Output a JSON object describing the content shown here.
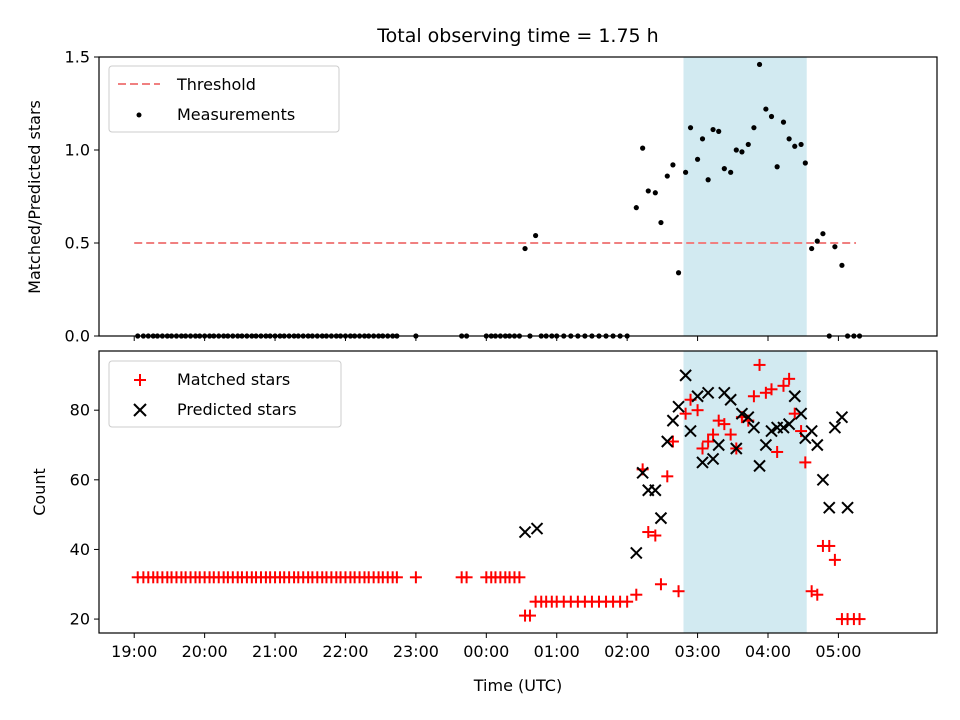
{
  "chart_data": {
    "title": "Total observing time = 1.75 h",
    "type": "scatter",
    "xlabel": "Time (UTC)",
    "x_tick_labels": [
      "19:00",
      "20:00",
      "21:00",
      "22:00",
      "23:00",
      "00:00",
      "01:00",
      "02:00",
      "03:00",
      "04:00",
      "05:00"
    ],
    "x_tick_hours": [
      0,
      1,
      2,
      3,
      4,
      5,
      6,
      7,
      8,
      9,
      10
    ],
    "x_unit": "hours after 19:00 UTC",
    "xlim": [
      -0.5,
      11.4
    ],
    "highlight_span": {
      "x_from": 7.8,
      "x_to": 9.55,
      "color": "#add8e6"
    },
    "panels": [
      {
        "ylabel": "Matched/Predicted stars",
        "ylim": [
          0,
          1.5
        ],
        "y_ticks": [
          0.0,
          0.5,
          1.0,
          1.5
        ],
        "y_tick_labels": [
          "0.0",
          "0.5",
          "1.0",
          "1.5"
        ],
        "legend": {
          "placement": "upper-left",
          "entries": [
            "Threshold",
            "Measurements"
          ]
        },
        "threshold": {
          "name": "Threshold",
          "y": 0.5,
          "x_from": 0.0,
          "x_to": 10.25,
          "color": "#f08080"
        },
        "measurements": {
          "name": "Measurements",
          "color": "#000000",
          "x": [
            0.05,
            0.13,
            0.2,
            0.27,
            0.33,
            0.4,
            0.47,
            0.53,
            0.6,
            0.67,
            0.73,
            0.8,
            0.87,
            0.93,
            1.0,
            1.07,
            1.13,
            1.2,
            1.27,
            1.33,
            1.4,
            1.47,
            1.53,
            1.6,
            1.67,
            1.73,
            1.8,
            1.87,
            1.93,
            2.0,
            2.07,
            2.13,
            2.2,
            2.27,
            2.33,
            2.4,
            2.47,
            2.53,
            2.6,
            2.67,
            2.73,
            2.8,
            2.87,
            2.93,
            3.0,
            3.07,
            3.13,
            3.2,
            3.27,
            3.33,
            3.4,
            3.47,
            3.53,
            3.6,
            3.67,
            3.73,
            4.0,
            4.65,
            4.72,
            5.0,
            5.07,
            5.13,
            5.2,
            5.27,
            5.33,
            5.4,
            5.47,
            5.55,
            5.62,
            5.7,
            5.78,
            5.85,
            5.93,
            6.0,
            6.1,
            6.2,
            6.3,
            6.4,
            6.5,
            6.6,
            6.7,
            6.8,
            6.9,
            7.0,
            7.13,
            7.22,
            7.3,
            7.4,
            7.48,
            7.57,
            7.65,
            7.73,
            7.83,
            7.9,
            8.0,
            8.07,
            8.15,
            8.22,
            8.3,
            8.38,
            8.47,
            8.55,
            8.63,
            8.72,
            8.8,
            8.88,
            8.97,
            9.05,
            9.13,
            9.22,
            9.3,
            9.38,
            9.47,
            9.53,
            9.62,
            9.7,
            9.78,
            9.87,
            9.95,
            10.05,
            10.13,
            10.22,
            10.3
          ],
          "y": [
            0,
            0,
            0,
            0,
            0,
            0,
            0,
            0,
            0,
            0,
            0,
            0,
            0,
            0,
            0,
            0,
            0,
            0,
            0,
            0,
            0,
            0,
            0,
            0,
            0,
            0,
            0,
            0,
            0,
            0,
            0,
            0,
            0,
            0,
            0,
            0,
            0,
            0,
            0,
            0,
            0,
            0,
            0,
            0,
            0,
            0,
            0,
            0,
            0,
            0,
            0,
            0,
            0,
            0,
            0,
            0,
            0,
            0,
            0,
            0,
            0,
            0,
            0,
            0,
            0,
            0,
            0,
            0.47,
            0,
            0.54,
            0,
            0,
            0,
            0,
            0,
            0,
            0,
            0,
            0,
            0,
            0,
            0,
            0,
            0,
            0.69,
            1.01,
            0.78,
            0.77,
            0.61,
            0.86,
            0.92,
            0.34,
            0.88,
            1.12,
            0.95,
            1.06,
            0.84,
            1.11,
            1.1,
            0.9,
            0.88,
            1.0,
            0.99,
            1.03,
            1.12,
            1.46,
            1.22,
            1.18,
            0.91,
            1.15,
            1.06,
            1.02,
            1.03,
            0.93,
            0.47,
            0.51,
            0.55,
            0,
            0.48,
            0.38,
            0,
            0,
            0
          ]
        }
      },
      {
        "ylabel": "Count",
        "ylim": [
          16,
          97
        ],
        "y_ticks": [
          20,
          40,
          60,
          80
        ],
        "y_tick_labels": [
          "20",
          "40",
          "60",
          "80"
        ],
        "legend": {
          "placement": "upper-left",
          "entries": [
            "Matched stars",
            "Predicted stars"
          ]
        },
        "series": [
          {
            "name": "Matched stars",
            "color": "#ff0000",
            "marker": "+",
            "x": [
              0.05,
              0.13,
              0.2,
              0.27,
              0.33,
              0.4,
              0.47,
              0.53,
              0.6,
              0.67,
              0.73,
              0.8,
              0.87,
              0.93,
              1.0,
              1.07,
              1.13,
              1.2,
              1.27,
              1.33,
              1.4,
              1.47,
              1.53,
              1.6,
              1.67,
              1.73,
              1.8,
              1.87,
              1.93,
              2.0,
              2.07,
              2.13,
              2.2,
              2.27,
              2.33,
              2.4,
              2.47,
              2.53,
              2.6,
              2.67,
              2.73,
              2.8,
              2.87,
              2.93,
              3.0,
              3.07,
              3.13,
              3.2,
              3.27,
              3.33,
              3.4,
              3.47,
              3.53,
              3.6,
              3.67,
              3.73,
              4.0,
              4.65,
              4.72,
              5.0,
              5.07,
              5.13,
              5.2,
              5.27,
              5.33,
              5.4,
              5.47,
              5.55,
              5.62,
              5.7,
              5.78,
              5.85,
              5.93,
              6.0,
              6.1,
              6.2,
              6.3,
              6.4,
              6.5,
              6.6,
              6.7,
              6.8,
              6.9,
              7.0,
              7.13,
              7.22,
              7.3,
              7.4,
              7.48,
              7.57,
              7.65,
              7.73,
              7.83,
              7.9,
              8.0,
              8.07,
              8.15,
              8.22,
              8.3,
              8.38,
              8.47,
              8.55,
              8.63,
              8.72,
              8.8,
              8.88,
              8.97,
              9.05,
              9.13,
              9.22,
              9.3,
              9.38,
              9.47,
              9.53,
              9.62,
              9.7,
              9.78,
              9.87,
              9.95,
              10.05,
              10.13,
              10.22,
              10.3
            ],
            "y": [
              32,
              32,
              32,
              32,
              32,
              32,
              32,
              32,
              32,
              32,
              32,
              32,
              32,
              32,
              32,
              32,
              32,
              32,
              32,
              32,
              32,
              32,
              32,
              32,
              32,
              32,
              32,
              32,
              32,
              32,
              32,
              32,
              32,
              32,
              32,
              32,
              32,
              32,
              32,
              32,
              32,
              32,
              32,
              32,
              32,
              32,
              32,
              32,
              32,
              32,
              32,
              32,
              32,
              32,
              32,
              32,
              32,
              32,
              32,
              32,
              32,
              32,
              32,
              32,
              32,
              32,
              32,
              21,
              21,
              25,
              25,
              25,
              25,
              25,
              25,
              25,
              25,
              25,
              25,
              25,
              25,
              25,
              25,
              25,
              27,
              63,
              45,
              44,
              30,
              61,
              71,
              28,
              79,
              83,
              80,
              69,
              71,
              73,
              77,
              76,
              73,
              69,
              78,
              77,
              84,
              93,
              85,
              86,
              68,
              87,
              89,
              79,
              74,
              65,
              28,
              27,
              41,
              41,
              37,
              20,
              20,
              20,
              20
            ]
          },
          {
            "name": "Predicted stars",
            "color": "#000000",
            "marker": "x",
            "x": [
              5.55,
              5.72,
              7.13,
              7.22,
              7.3,
              7.4,
              7.48,
              7.57,
              7.65,
              7.73,
              7.83,
              7.9,
              8.0,
              8.07,
              8.15,
              8.22,
              8.3,
              8.38,
              8.47,
              8.55,
              8.63,
              8.72,
              8.8,
              8.88,
              8.97,
              9.05,
              9.13,
              9.22,
              9.3,
              9.38,
              9.47,
              9.53,
              9.62,
              9.7,
              9.78,
              9.87,
              9.95,
              10.05,
              10.13
            ],
            "y": [
              45,
              46,
              39,
              62,
              57,
              57,
              49,
              71,
              77,
              81,
              90,
              74,
              84,
              65,
              85,
              66,
              70,
              85,
              83,
              69,
              79,
              78,
              75,
              64,
              70,
              74,
              75,
              75,
              76,
              84,
              79,
              72,
              74,
              70,
              60,
              52,
              75,
              78,
              52
            ]
          }
        ]
      }
    ]
  }
}
